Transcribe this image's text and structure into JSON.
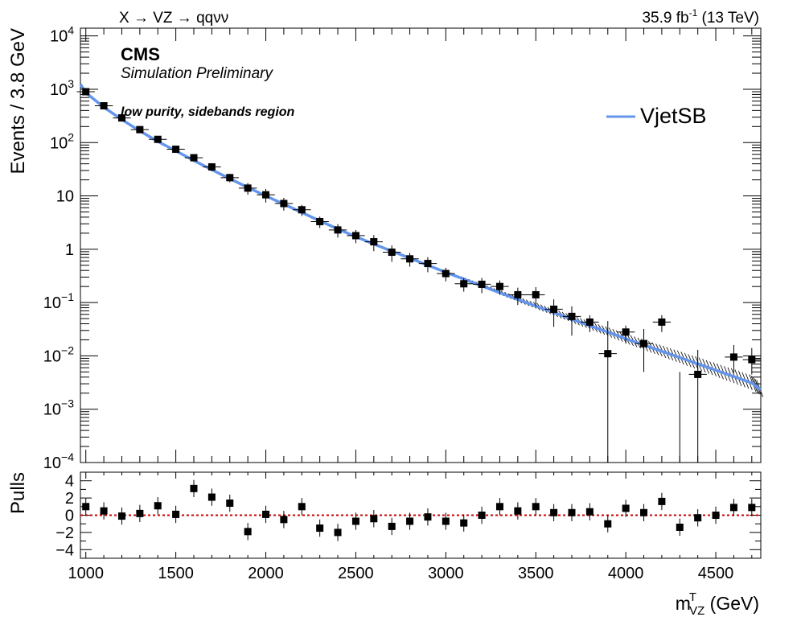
{
  "header": {
    "process": "X → VZ → qqνν",
    "lumi_main": "35.9 fb",
    "lumi_sup": "-1",
    "lumi_energy": "(13 TeV)"
  },
  "labels": {
    "cms": "CMS",
    "cms_sub": "Simulation Preliminary",
    "region": "low purity, sidebands region",
    "legend": "VjetSB"
  },
  "colors": {
    "fit": "#6495ed",
    "points": "#000000",
    "zero_line": "#cc0000"
  },
  "chart_data": [
    {
      "type": "scatter",
      "ylabel": "Events / 3.8 GeV",
      "yscale": "log",
      "ylim": [
        0.0001,
        14000
      ],
      "xlim": [
        970,
        4750
      ],
      "yticks": [
        {
          "v": 10000,
          "base": "10",
          "exp": "4"
        },
        {
          "v": 1000,
          "base": "10",
          "exp": "3"
        },
        {
          "v": 100,
          "base": "10",
          "exp": "2"
        },
        {
          "v": 10,
          "base": "10",
          "exp": ""
        },
        {
          "v": 1,
          "base": "1",
          "exp": ""
        },
        {
          "v": 0.1,
          "base": "10",
          "exp": "−1"
        },
        {
          "v": 0.01,
          "base": "10",
          "exp": "−2"
        },
        {
          "v": 0.001,
          "base": "10",
          "exp": "−3"
        },
        {
          "v": 0.0001,
          "base": "10",
          "exp": "−4"
        }
      ],
      "series": [
        {
          "name": "VjetSB",
          "type": "line",
          "x": [
            970,
            1000,
            1100,
            1200,
            1300,
            1400,
            1500,
            1600,
            1700,
            1800,
            1900,
            2000,
            2100,
            2200,
            2300,
            2400,
            2500,
            2600,
            2700,
            2800,
            2900,
            3000,
            3100,
            3200,
            3300,
            3400,
            3500,
            3600,
            3700,
            3800,
            3900,
            4000,
            4100,
            4200,
            4300,
            4400,
            4500,
            4600,
            4700,
            4750
          ],
          "y": [
            1250,
            860,
            460,
            270,
            165,
            105,
            70,
            46,
            31,
            21,
            14.5,
            10,
            7,
            4.9,
            3.4,
            2.4,
            1.72,
            1.25,
            0.92,
            0.68,
            0.5,
            0.37,
            0.275,
            0.205,
            0.153,
            0.114,
            0.086,
            0.065,
            0.049,
            0.037,
            0.028,
            0.021,
            0.016,
            0.0122,
            0.0093,
            0.0071,
            0.0054,
            0.0041,
            0.0031,
            0.0023
          ]
        },
        {
          "name": "",
          "type": "points",
          "x": [
            1000,
            1100,
            1200,
            1300,
            1400,
            1500,
            1600,
            1700,
            1800,
            1900,
            2000,
            2100,
            2200,
            2300,
            2400,
            2500,
            2600,
            2700,
            2800,
            2900,
            3000,
            3100,
            3200,
            3300,
            3400,
            3500,
            3600,
            3700,
            3800,
            3900,
            4000,
            4100,
            4200,
            4400,
            4600,
            4700
          ],
          "y": [
            900,
            490,
            290,
            175,
            115,
            75,
            52,
            35,
            22,
            14,
            10.5,
            7.2,
            5.5,
            3.3,
            2.3,
            1.8,
            1.38,
            0.88,
            0.66,
            0.54,
            0.35,
            0.225,
            0.22,
            0.2,
            0.14,
            0.14,
            0.075,
            0.055,
            0.043,
            0.011,
            0.028,
            0.017,
            0.043,
            0.0045,
            0.0095,
            0.0085
          ],
          "ylo": [
            820,
            460,
            270,
            160,
            104,
            66,
            45,
            29,
            18,
            10.5,
            7.5,
            5.3,
            4.2,
            2.5,
            1.65,
            1.3,
            0.92,
            0.58,
            0.47,
            0.37,
            0.25,
            0.16,
            0.15,
            0.14,
            0.09,
            0.085,
            0.035,
            0.024,
            0.028,
            0.0001,
            0.017,
            0.005,
            0.028,
            0.0001,
            0.0048,
            0.0045
          ],
          "yhi": [
            980,
            520,
            310,
            190,
            126,
            84,
            59,
            41,
            26,
            17.5,
            13.5,
            9.2,
            6.8,
            4.1,
            2.95,
            2.3,
            1.84,
            1.18,
            0.85,
            0.71,
            0.45,
            0.29,
            0.29,
            0.26,
            0.19,
            0.195,
            0.115,
            0.085,
            0.058,
            0.045,
            0.037,
            0.032,
            0.058,
            0.013,
            0.016,
            0.014
          ]
        }
      ],
      "extra_errorbars": [
        {
          "x": 4300,
          "ylo": 0.0001,
          "yhi": 0.005
        }
      ]
    },
    {
      "type": "scatter",
      "ylabel": "Pulls",
      "xlabel_main": "m",
      "xlabel_sup": "T",
      "xlabel_sub": "VZ",
      "xlabel_unit": " (GeV)",
      "ylim": [
        -5,
        5
      ],
      "xlim": [
        970,
        4750
      ],
      "yticks": [
        4,
        2,
        0,
        -2,
        -4
      ],
      "ytick_labels": [
        "4",
        "2",
        "0",
        "−2",
        "−4"
      ],
      "xticks": [
        1000,
        1500,
        2000,
        2500,
        3000,
        3500,
        4000,
        4500
      ],
      "xtick_labels": [
        "1000",
        "1500",
        "2000",
        "2500",
        "3000",
        "3500",
        "4000",
        "4500"
      ],
      "series": [
        {
          "name": "",
          "type": "points",
          "x": [
            1000,
            1100,
            1200,
            1300,
            1400,
            1500,
            1600,
            1700,
            1800,
            1900,
            2000,
            2100,
            2200,
            2300,
            2400,
            2500,
            2600,
            2700,
            2800,
            2900,
            3000,
            3100,
            3200,
            3300,
            3400,
            3500,
            3600,
            3700,
            3800,
            3900,
            4000,
            4100,
            4200,
            4300,
            4400,
            4500,
            4600,
            4700
          ],
          "y": [
            1.0,
            0.5,
            -0.1,
            0.2,
            1.1,
            0.1,
            3.1,
            2.1,
            1.4,
            -1.9,
            0.1,
            -0.5,
            1.0,
            -1.5,
            -2.0,
            -0.7,
            -0.4,
            -1.3,
            -0.7,
            -0.2,
            -0.7,
            -0.9,
            0.0,
            1.0,
            0.5,
            1.0,
            0.3,
            0.3,
            0.4,
            -1.0,
            0.8,
            0.3,
            1.6,
            -1.4,
            -0.3,
            0.0,
            0.9,
            0.9
          ]
        }
      ],
      "reference_line": 0
    }
  ]
}
